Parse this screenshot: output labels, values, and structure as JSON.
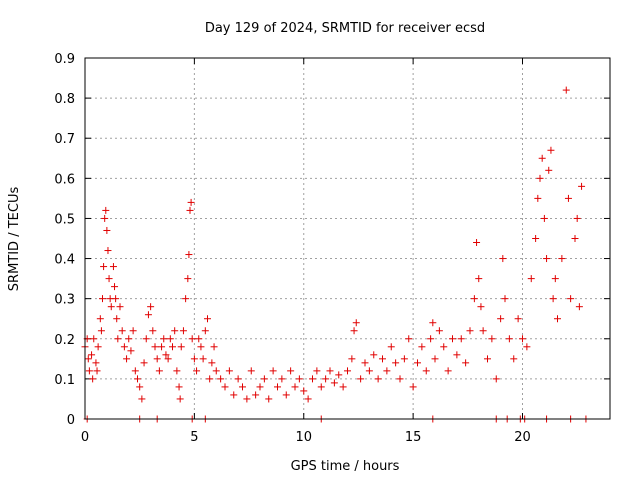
{
  "chart_data": {
    "type": "scatter",
    "title": "Day 129 of 2024, SRMTID for receiver ecsd",
    "xlabel": "GPS time / hours",
    "ylabel": "SRMTID / TECUs",
    "xlim": [
      0,
      24
    ],
    "ylim": [
      0,
      0.9
    ],
    "xticks": [
      0,
      5,
      10,
      15,
      20
    ],
    "yticks": [
      0,
      0.1,
      0.2,
      0.3,
      0.4,
      0.5,
      0.6,
      0.7,
      0.8,
      0.9
    ],
    "xtick_labels": [
      "0",
      "5",
      "10",
      "15",
      "20"
    ],
    "ytick_labels": [
      "0",
      "0.1",
      "0.2",
      "0.3",
      "0.4",
      "0.5",
      "0.6",
      "0.7",
      "0.8",
      "0.9"
    ],
    "grid": true,
    "marker": "plus",
    "color": "#e00000",
    "series": [
      {
        "name": "SRMTID",
        "points": [
          [
            0.0,
            0.18
          ],
          [
            0.1,
            0.2
          ],
          [
            0.15,
            0.15
          ],
          [
            0.2,
            0.12
          ],
          [
            0.3,
            0.16
          ],
          [
            0.35,
            0.1
          ],
          [
            0.4,
            0.2
          ],
          [
            0.5,
            0.14
          ],
          [
            0.55,
            0.12
          ],
          [
            0.6,
            0.18
          ],
          [
            0.7,
            0.25
          ],
          [
            0.75,
            0.22
          ],
          [
            0.8,
            0.3
          ],
          [
            0.85,
            0.38
          ],
          [
            0.9,
            0.5
          ],
          [
            0.95,
            0.52
          ],
          [
            1.0,
            0.47
          ],
          [
            1.05,
            0.42
          ],
          [
            1.1,
            0.35
          ],
          [
            1.15,
            0.3
          ],
          [
            1.2,
            0.28
          ],
          [
            1.3,
            0.38
          ],
          [
            1.35,
            0.33
          ],
          [
            1.4,
            0.3
          ],
          [
            1.45,
            0.25
          ],
          [
            1.5,
            0.2
          ],
          [
            1.6,
            0.28
          ],
          [
            1.7,
            0.22
          ],
          [
            1.8,
            0.18
          ],
          [
            1.9,
            0.15
          ],
          [
            2.0,
            0.2
          ],
          [
            2.1,
            0.17
          ],
          [
            2.2,
            0.22
          ],
          [
            2.3,
            0.12
          ],
          [
            2.4,
            0.1
          ],
          [
            2.5,
            0.08
          ],
          [
            2.6,
            0.05
          ],
          [
            2.7,
            0.14
          ],
          [
            2.8,
            0.2
          ],
          [
            2.9,
            0.26
          ],
          [
            3.0,
            0.28
          ],
          [
            3.1,
            0.22
          ],
          [
            3.2,
            0.18
          ],
          [
            3.3,
            0.15
          ],
          [
            3.4,
            0.12
          ],
          [
            3.5,
            0.18
          ],
          [
            3.6,
            0.2
          ],
          [
            3.7,
            0.16
          ],
          [
            3.8,
            0.15
          ],
          [
            3.9,
            0.2
          ],
          [
            4.0,
            0.18
          ],
          [
            4.1,
            0.22
          ],
          [
            4.2,
            0.12
          ],
          [
            4.3,
            0.08
          ],
          [
            4.35,
            0.05
          ],
          [
            4.4,
            0.18
          ],
          [
            4.5,
            0.22
          ],
          [
            4.6,
            0.3
          ],
          [
            4.7,
            0.35
          ],
          [
            4.75,
            0.41
          ],
          [
            4.8,
            0.52
          ],
          [
            4.85,
            0.54
          ],
          [
            4.9,
            0.2
          ],
          [
            5.0,
            0.15
          ],
          [
            5.1,
            0.12
          ],
          [
            5.2,
            0.2
          ],
          [
            5.3,
            0.18
          ],
          [
            5.4,
            0.15
          ],
          [
            5.5,
            0.22
          ],
          [
            5.6,
            0.25
          ],
          [
            5.7,
            0.1
          ],
          [
            5.8,
            0.14
          ],
          [
            5.9,
            0.18
          ],
          [
            6.0,
            0.12
          ],
          [
            6.2,
            0.1
          ],
          [
            6.4,
            0.08
          ],
          [
            6.6,
            0.12
          ],
          [
            6.8,
            0.06
          ],
          [
            7.0,
            0.1
          ],
          [
            7.2,
            0.08
          ],
          [
            7.4,
            0.05
          ],
          [
            7.6,
            0.12
          ],
          [
            7.8,
            0.06
          ],
          [
            8.0,
            0.08
          ],
          [
            8.2,
            0.1
          ],
          [
            8.4,
            0.05
          ],
          [
            8.6,
            0.12
          ],
          [
            8.8,
            0.08
          ],
          [
            9.0,
            0.1
          ],
          [
            9.2,
            0.06
          ],
          [
            9.4,
            0.12
          ],
          [
            9.6,
            0.08
          ],
          [
            9.8,
            0.1
          ],
          [
            10.0,
            0.07
          ],
          [
            10.2,
            0.05
          ],
          [
            10.4,
            0.1
          ],
          [
            10.6,
            0.12
          ],
          [
            10.8,
            0.08
          ],
          [
            11.0,
            0.1
          ],
          [
            11.2,
            0.12
          ],
          [
            11.4,
            0.09
          ],
          [
            11.6,
            0.11
          ],
          [
            11.8,
            0.08
          ],
          [
            12.0,
            0.12
          ],
          [
            12.2,
            0.15
          ],
          [
            12.3,
            0.22
          ],
          [
            12.4,
            0.24
          ],
          [
            12.6,
            0.1
          ],
          [
            12.8,
            0.14
          ],
          [
            13.0,
            0.12
          ],
          [
            13.2,
            0.16
          ],
          [
            13.4,
            0.1
          ],
          [
            13.6,
            0.15
          ],
          [
            13.8,
            0.12
          ],
          [
            14.0,
            0.18
          ],
          [
            14.2,
            0.14
          ],
          [
            14.4,
            0.1
          ],
          [
            14.6,
            0.15
          ],
          [
            14.8,
            0.2
          ],
          [
            15.0,
            0.08
          ],
          [
            15.2,
            0.14
          ],
          [
            15.4,
            0.18
          ],
          [
            15.6,
            0.12
          ],
          [
            15.8,
            0.2
          ],
          [
            15.9,
            0.24
          ],
          [
            16.0,
            0.15
          ],
          [
            16.2,
            0.22
          ],
          [
            16.4,
            0.18
          ],
          [
            16.6,
            0.12
          ],
          [
            16.8,
            0.2
          ],
          [
            17.0,
            0.16
          ],
          [
            17.2,
            0.2
          ],
          [
            17.4,
            0.14
          ],
          [
            17.6,
            0.22
          ],
          [
            17.8,
            0.3
          ],
          [
            17.9,
            0.44
          ],
          [
            18.0,
            0.35
          ],
          [
            18.1,
            0.28
          ],
          [
            18.2,
            0.22
          ],
          [
            18.4,
            0.15
          ],
          [
            18.6,
            0.2
          ],
          [
            18.8,
            0.1
          ],
          [
            19.0,
            0.25
          ],
          [
            19.1,
            0.4
          ],
          [
            19.2,
            0.3
          ],
          [
            19.4,
            0.2
          ],
          [
            19.6,
            0.15
          ],
          [
            19.8,
            0.25
          ],
          [
            20.0,
            0.2
          ],
          [
            20.2,
            0.18
          ],
          [
            20.4,
            0.35
          ],
          [
            20.6,
            0.45
          ],
          [
            20.7,
            0.55
          ],
          [
            20.8,
            0.6
          ],
          [
            20.9,
            0.65
          ],
          [
            21.0,
            0.5
          ],
          [
            21.1,
            0.4
          ],
          [
            21.2,
            0.62
          ],
          [
            21.3,
            0.67
          ],
          [
            21.4,
            0.3
          ],
          [
            21.5,
            0.35
          ],
          [
            21.6,
            0.25
          ],
          [
            21.8,
            0.4
          ],
          [
            22.0,
            0.82
          ],
          [
            22.1,
            0.55
          ],
          [
            22.2,
            0.3
          ],
          [
            22.4,
            0.45
          ],
          [
            22.5,
            0.5
          ],
          [
            22.6,
            0.28
          ],
          [
            22.7,
            0.58
          ]
        ],
        "zero_points": [
          0.1,
          2.5,
          3.3,
          4.9,
          5.5,
          10.8,
          15.9,
          18.8,
          19.3,
          19.9,
          20.1,
          21.1,
          22.2,
          22.9
        ]
      }
    ]
  }
}
